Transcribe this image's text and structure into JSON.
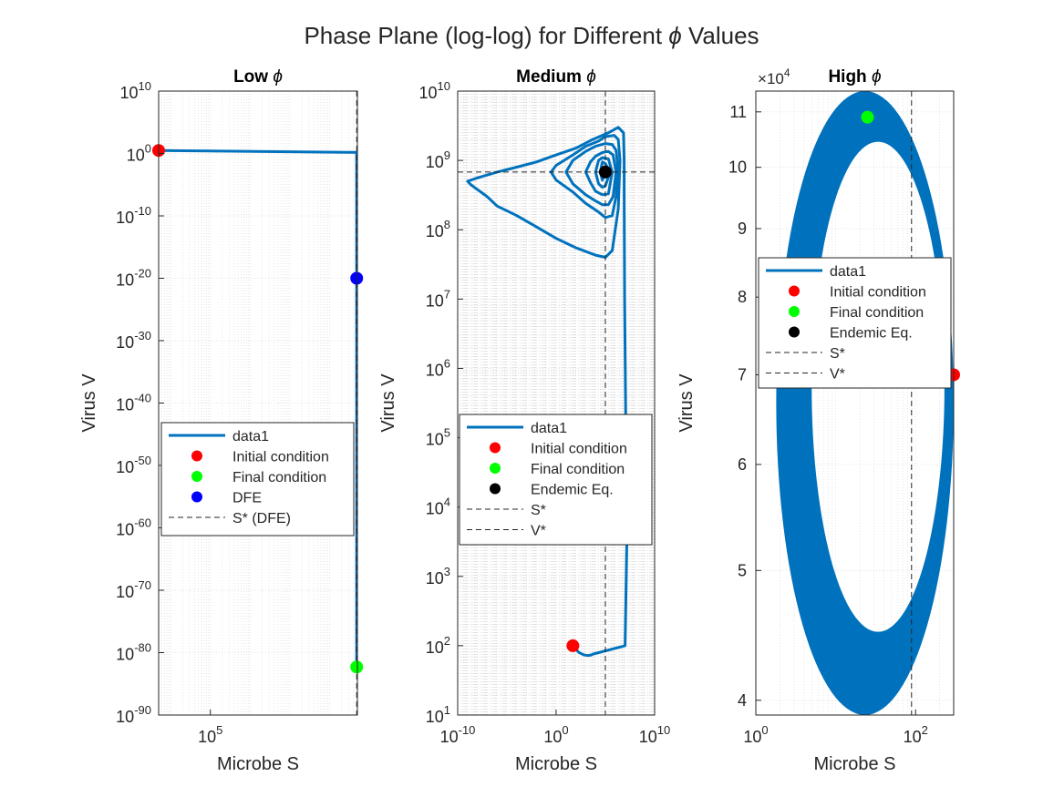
{
  "figure": {
    "suptitle_prefix": "Phase Plane (log-log) for Different ",
    "suptitle_symbol": "ϕ",
    "suptitle_suffix": " Values"
  },
  "colors": {
    "trajectory": "#0072BD",
    "initial": "#FF0000",
    "final": "#00FF00",
    "dfe": "#0000FF",
    "endemic": "#000000",
    "axis": "#262626",
    "grid": "#DFDFDF",
    "reference_line": "#262626"
  },
  "chart_data": [
    {
      "type": "line",
      "title_prefix": "Low ",
      "title_symbol": "ϕ",
      "xlabel": "Microbe S",
      "ylabel": "Virus V",
      "xscale": "log",
      "yscale": "log",
      "xlim": [
        5000,
        500000000.0
      ],
      "ylim": [
        1e-90,
        10000000000.0
      ],
      "x_ticks": [
        {
          "value": 100000,
          "base": "10",
          "exp": "5"
        }
      ],
      "y_ticks": [
        {
          "value": 1e-90,
          "base": "10",
          "exp": "-90"
        },
        {
          "value": 1e-80,
          "base": "10",
          "exp": "-80"
        },
        {
          "value": 1e-70,
          "base": "10",
          "exp": "-70"
        },
        {
          "value": 1e-60,
          "base": "10",
          "exp": "-60"
        },
        {
          "value": 1e-50,
          "base": "10",
          "exp": "-50"
        },
        {
          "value": 1e-40,
          "base": "10",
          "exp": "-40"
        },
        {
          "value": 1e-30,
          "base": "10",
          "exp": "-30"
        },
        {
          "value": 1e-20,
          "base": "10",
          "exp": "-20"
        },
        {
          "value": 1e-10,
          "base": "10",
          "exp": "-10"
        },
        {
          "value": 1,
          "base": "10",
          "exp": "0"
        },
        {
          "value": 10000000000.0,
          "base": "10",
          "exp": "10"
        }
      ],
      "grid": true,
      "legend_position": "center-left",
      "series": [
        {
          "name": "data1",
          "kind": "line",
          "x": [
            5000,
            480000000.0,
            480000000.0
          ],
          "y": [
            3,
            1.5,
            5e-83
          ]
        },
        {
          "name": "Initial condition",
          "kind": "marker",
          "color_key": "initial",
          "x": 5000,
          "y": 3
        },
        {
          "name": "Final condition",
          "kind": "marker",
          "color_key": "final",
          "x": 480000000.0,
          "y": 5e-83
        },
        {
          "name": "DFE",
          "kind": "marker",
          "color_key": "dfe",
          "x": 480000000.0,
          "y": 1e-20
        },
        {
          "name": "S* (DFE)",
          "kind": "vline",
          "x": 480000000.0
        }
      ]
    },
    {
      "type": "line",
      "title_prefix": "Medium ",
      "title_symbol": "ϕ",
      "xlabel": "Microbe S",
      "ylabel": "Virus V",
      "xscale": "log",
      "yscale": "log",
      "xlim": [
        1e-10,
        10000000000.0
      ],
      "ylim": [
        10,
        10000000000.0
      ],
      "x_ticks": [
        {
          "value": 1e-10,
          "base": "10",
          "exp": "-10"
        },
        {
          "value": 1,
          "base": "10",
          "exp": "0"
        },
        {
          "value": 10000000000.0,
          "base": "10",
          "exp": "10"
        }
      ],
      "y_ticks": [
        {
          "value": 10,
          "base": "10",
          "exp": "1"
        },
        {
          "value": 100,
          "base": "10",
          "exp": "2"
        },
        {
          "value": 1000,
          "base": "10",
          "exp": "3"
        },
        {
          "value": 10000,
          "base": "10",
          "exp": "4"
        },
        {
          "value": 100000,
          "base": "10",
          "exp": "5"
        },
        {
          "value": 1000000,
          "base": "10",
          "exp": "6"
        },
        {
          "value": 10000000,
          "base": "10",
          "exp": "7"
        },
        {
          "value": 100000000,
          "base": "10",
          "exp": "8"
        },
        {
          "value": 1000000000,
          "base": "10",
          "exp": "9"
        },
        {
          "value": 10000000000,
          "base": "10",
          "exp": "10"
        }
      ],
      "grid": true,
      "legend_position": "center-left",
      "series": [
        {
          "name": "data1",
          "kind": "line",
          "x": [
            50,
            200,
            600,
            1500,
            3000,
            6000,
            10000000.0,
            15000000.0,
            12000000.0,
            9000000.0,
            8000000.0,
            8000000.0,
            7000000.0,
            2000000.0,
            200000.0,
            5000.0,
            100.0,
            1,
            0.01,
            0.0001,
            1e-06,
            1e-08,
            1e-09,
            2e-09,
            1e-08,
            1e-07,
            1e-06,
            0.0001,
            0.01,
            1,
            100.0,
            10000.0,
            100000.0,
            500000.0,
            2000000.0,
            3000000.0,
            2000000.0,
            800000.0,
            100000.0,
            20000.0,
            1000.0,
            50,
            1,
            0.3,
            1,
            50,
            1000.0,
            20000.0,
            100000.0,
            500000.0,
            1200000.0,
            2000000.0,
            1200000.0,
            500000.0,
            100000.0,
            10000.0,
            1000.0,
            50,
            10,
            50,
            1000.0,
            10000.0,
            50000.0,
            200000.0,
            600000.0,
            1200000.0,
            600000.0,
            200000.0,
            50000.0,
            10000.0,
            3000.0,
            1000.0,
            3000.0,
            10000.0,
            50000.0,
            200000.0,
            500000.0,
            200000.0,
            50000.0,
            20000.0,
            10000.0,
            20000.0,
            50000.0,
            100000.0,
            300000.0,
            100000.0,
            50000.0,
            30000.0,
            50000.0,
            100000.0
          ],
          "y": [
            100,
            80,
            74,
            72,
            73,
            76,
            100,
            3000.0,
            100000.0,
            10000000.0,
            300000000.0,
            1000000000.0,
            2500000000.0,
            3000000000.0,
            2500000000.0,
            2000000000.0,
            1500000000.0,
            1200000000.0,
            950000000.0,
            800000000.0,
            680000000.0,
            560000000.0,
            500000000.0,
            450000000.0,
            380000000.0,
            300000000.0,
            220000000.0,
            160000000.0,
            110000000.0,
            75000000.0,
            55000000.0,
            43000000.0,
            40000000.0,
            50000000.0,
            200000000.0,
            1000000000.0,
            2000000000.0,
            2300000000.0,
            2200000000.0,
            1900000000.0,
            1600000000.0,
            1200000000.0,
            850000000.0,
            680000000.0,
            520000000.0,
            350000000.0,
            240000000.0,
            180000000.0,
            150000000.0,
            160000000.0,
            300000000.0,
            700000000.0,
            1400000000.0,
            1700000000.0,
            1750000000.0,
            1600000000.0,
            1350000000.0,
            1000000000.0,
            680000000.0,
            460000000.0,
            320000000.0,
            260000000.0,
            230000000.0,
            230000000.0,
            300000000.0,
            680000000.0,
            1200000000.0,
            1350000000.0,
            1300000000.0,
            1150000000.0,
            950000000.0,
            680000000.0,
            480000000.0,
            360000000.0,
            320000000.0,
            330000000.0,
            680000000.0,
            1050000000.0,
            1100000000.0,
            1000000000.0,
            680000000.0,
            460000000.0,
            410000000.0,
            430000000.0,
            680000000.0,
            900000000.0,
            950000000.0,
            680000000.0,
            520000000.0,
            680000000.0
          ]
        },
        {
          "name": "Initial condition",
          "kind": "marker",
          "color_key": "initial",
          "x": 50,
          "y": 100
        },
        {
          "name": "Final condition",
          "kind": "marker",
          "color_key": "final",
          "x": 100000,
          "y": 680000000
        },
        {
          "name": "Endemic Eq.",
          "kind": "marker",
          "color_key": "endemic",
          "x": 100000,
          "y": 680000000
        },
        {
          "name": "S*",
          "kind": "vline",
          "x": 100000
        },
        {
          "name": "V*",
          "kind": "hline",
          "y": 680000000
        }
      ]
    },
    {
      "type": "line",
      "title_prefix": "High ",
      "title_symbol": "ϕ",
      "xlabel": "Microbe S",
      "ylabel": "Virus V",
      "xscale": "log",
      "yscale": "log",
      "xlim": [
        1,
        300
      ],
      "ylim": [
        39000,
        114000
      ],
      "x_ticks": [
        {
          "value": 1,
          "base": "10",
          "exp": "0"
        },
        {
          "value": 100,
          "base": "10",
          "exp": "2"
        }
      ],
      "y_ticks": [
        {
          "value": 40000,
          "label": "4"
        },
        {
          "value": 50000,
          "label": "5"
        },
        {
          "value": 60000,
          "label": "6"
        },
        {
          "value": 70000,
          "label": "7"
        },
        {
          "value": 80000,
          "label": "8"
        },
        {
          "value": 90000,
          "label": "9"
        },
        {
          "value": 100000,
          "label": "10"
        },
        {
          "value": 110000,
          "label": "11"
        }
      ],
      "y_exponent_label": "10",
      "y_exponent_sup": "4",
      "y_exponent_prefix": "×",
      "grid": true,
      "legend_position": "center-left",
      "series": [
        {
          "name": "data1",
          "kind": "band_ellipse",
          "center_x": 89,
          "center_y": 70000,
          "outer_x_left": 1.8,
          "outer_x_right": 300,
          "outer_y_bottom": 39000,
          "outer_y_top": 114000,
          "inner_x_left": 5,
          "inner_x_right": 230,
          "inner_y_bottom": 45000,
          "inner_y_top": 104500
        },
        {
          "name": "Initial condition",
          "kind": "marker",
          "color_key": "initial",
          "x": 300,
          "y": 70000
        },
        {
          "name": "Final condition",
          "kind": "marker",
          "color_key": "final",
          "x": 25,
          "y": 109000
        },
        {
          "name": "Endemic Eq.",
          "kind": "marker",
          "color_key": "endemic",
          "x": 89,
          "y": 70000
        },
        {
          "name": "S*",
          "kind": "vline",
          "x": 89
        },
        {
          "name": "V*",
          "kind": "hline",
          "y": 70000
        }
      ]
    }
  ]
}
